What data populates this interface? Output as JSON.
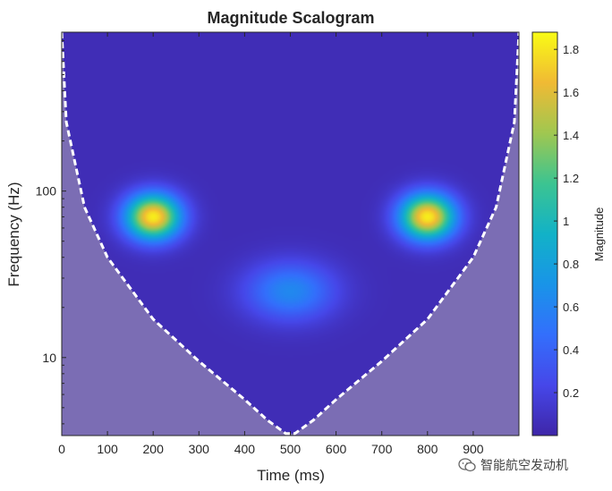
{
  "chart_data": {
    "type": "heatmap",
    "title": "Magnitude Scalogram",
    "xlabel": "Time (ms)",
    "ylabel": "Frequency (Hz)",
    "colorbar_label": "Magnitude",
    "xlim": [
      0,
      1000
    ],
    "ylim_hz": [
      3.4,
      900
    ],
    "y_scale": "log",
    "x_ticks": [
      0,
      100,
      200,
      300,
      400,
      500,
      600,
      700,
      800,
      900
    ],
    "x_tick_labels": [
      "0",
      "100",
      "200",
      "300",
      "400",
      "500",
      "600",
      "700",
      "800",
      "900"
    ],
    "y_ticks": [
      10,
      100
    ],
    "y_tick_labels": [
      "10",
      "100"
    ],
    "colorbar_range": [
      0,
      1.88
    ],
    "colorbar_ticks": [
      0.2,
      0.4,
      0.6,
      0.8,
      1,
      1.2,
      1.4,
      1.6,
      1.8
    ],
    "colorbar_tick_labels": [
      "0.2",
      "0.4",
      "0.6",
      "0.8",
      "1",
      "1.2",
      "1.4",
      "1.6",
      "1.8"
    ],
    "colormap": "parula",
    "background_magnitude": 0.05,
    "blobs": [
      {
        "time_ms": 200,
        "freq_hz": 70,
        "peak_magnitude": 1.78
      },
      {
        "time_ms": 800,
        "freq_hz": 70,
        "peak_magnitude": 1.78
      },
      {
        "time_ms": 500,
        "freq_hz": 25,
        "peak_magnitude": 0.58
      }
    ],
    "cone_of_influence": {
      "style": "white dashed line",
      "region_color": "#7b6db4",
      "points": [
        [
          0,
          900
        ],
        [
          10,
          260
        ],
        [
          50,
          80
        ],
        [
          100,
          40
        ],
        [
          200,
          17
        ],
        [
          300,
          9.5
        ],
        [
          400,
          5.6
        ],
        [
          450,
          4.2
        ],
        [
          490,
          3.5
        ],
        [
          510,
          3.5
        ],
        [
          550,
          4.2
        ],
        [
          600,
          5.6
        ],
        [
          700,
          9.5
        ],
        [
          800,
          17
        ],
        [
          900,
          40
        ],
        [
          950,
          80
        ],
        [
          990,
          260
        ],
        [
          1000,
          900
        ]
      ]
    }
  },
  "watermark": {
    "text": "智能航空发动机",
    "icon": "wechat-icon",
    "color": "#1aad19"
  }
}
